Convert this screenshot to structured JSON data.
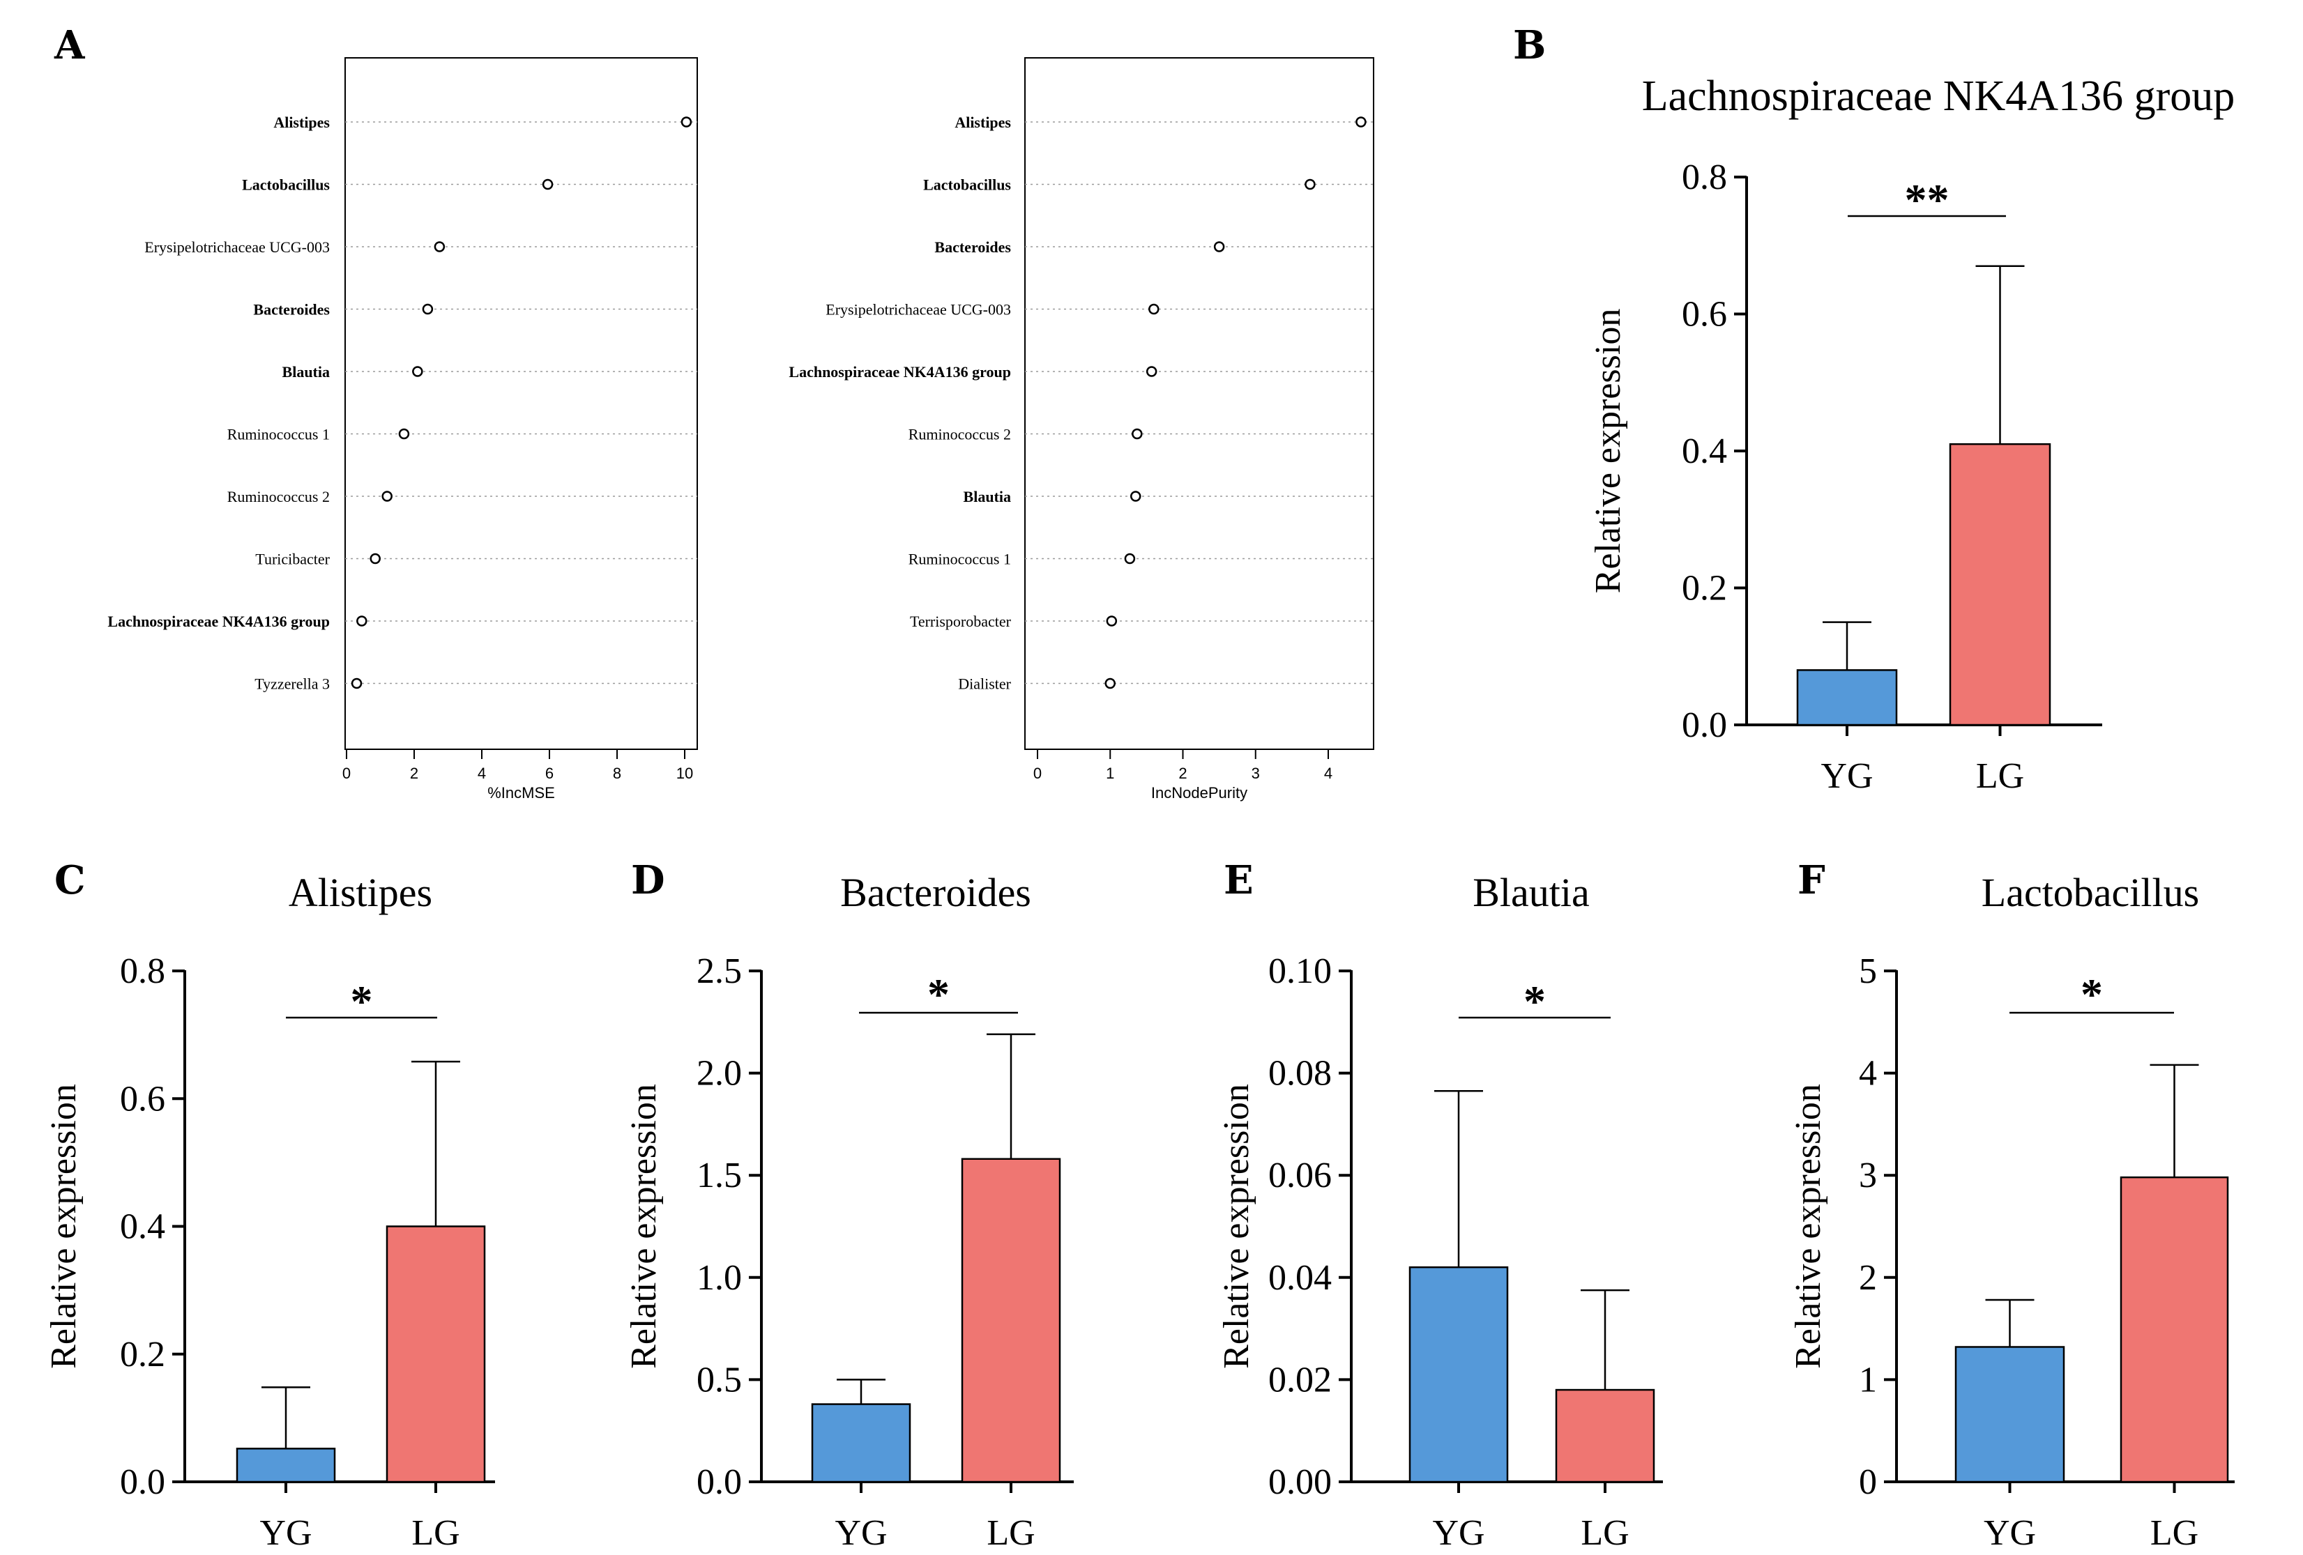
{
  "colors": {
    "highlight_label": "#e8000b",
    "normal_label": "#000000",
    "bar_YG": "#5599d9",
    "bar_LG": "#ef7672",
    "axis": "#000000",
    "dotted_guide": "#9a9a9a"
  },
  "panel_letters": [
    "A",
    "B",
    "C",
    "D",
    "E",
    "F"
  ],
  "chart_data": [
    {
      "id": "A1",
      "panel": "A",
      "type": "scatter",
      "title": "",
      "xlabel": "%IncMSE",
      "ylabel": "",
      "xlim": [
        0,
        10.5
      ],
      "xticks": [
        0,
        2,
        4,
        6,
        8,
        10
      ],
      "categories": [
        "Alistipes",
        "Lactobacillus",
        "Erysipelotrichaceae UCG-003",
        "Bacteroides",
        "Blautia",
        "Ruminococcus 1",
        "Ruminococcus 2",
        "Turicibacter",
        "Lachnospiraceae NK4A136 group",
        "Tyzzerella 3"
      ],
      "values": [
        10.05,
        5.95,
        2.75,
        2.4,
        2.1,
        1.7,
        1.2,
        0.85,
        0.45,
        0.3
      ],
      "highlighted": [
        true,
        true,
        false,
        true,
        true,
        false,
        false,
        false,
        true,
        false
      ]
    },
    {
      "id": "A2",
      "panel": "A",
      "type": "scatter",
      "title": "",
      "xlabel": "IncNodePurity",
      "ylabel": "",
      "xlim": [
        0,
        4.6
      ],
      "xticks": [
        0,
        1,
        2,
        3,
        4
      ],
      "categories": [
        "Alistipes",
        "Lactobacillus",
        "Bacteroides",
        "Erysipelotrichaceae UCG-003",
        "Lachnospiraceae NK4A136 group",
        "Ruminococcus 2",
        "Blautia",
        "Ruminococcus 1",
        "Terrisporobacter",
        "Dialister"
      ],
      "values": [
        4.45,
        3.75,
        2.5,
        1.6,
        1.57,
        1.37,
        1.35,
        1.27,
        1.02,
        1.0
      ],
      "highlighted": [
        true,
        true,
        true,
        false,
        true,
        false,
        true,
        false,
        false,
        false
      ]
    },
    {
      "id": "B",
      "panel": "B",
      "type": "bar",
      "title": "Lachnospiraceae NK4A136 group",
      "xlabel": "",
      "ylabel": "Relative expression",
      "categories": [
        "YG",
        "LG"
      ],
      "values": [
        0.08,
        0.41
      ],
      "errors": [
        0.07,
        0.26
      ],
      "ylim": [
        0,
        0.8
      ],
      "yticks": [
        "0.0",
        "0.2",
        "0.4",
        "0.6",
        "0.8"
      ],
      "significance": "**"
    },
    {
      "id": "C",
      "panel": "C",
      "type": "bar",
      "title": "Alistipes",
      "xlabel": "",
      "ylabel": "Relative expression",
      "categories": [
        "YG",
        "LG"
      ],
      "values": [
        0.052,
        0.4
      ],
      "errors": [
        0.096,
        0.258
      ],
      "ylim": [
        0,
        0.8
      ],
      "yticks": [
        "0.0",
        "0.2",
        "0.4",
        "0.6",
        "0.8"
      ],
      "significance": "*"
    },
    {
      "id": "D",
      "panel": "D",
      "type": "bar",
      "title": "Bacteroides",
      "xlabel": "",
      "ylabel": "Relative expression",
      "categories": [
        "YG",
        "LG"
      ],
      "values": [
        0.38,
        1.58
      ],
      "errors": [
        0.12,
        0.61
      ],
      "ylim": [
        0,
        2.5
      ],
      "yticks": [
        "0.0",
        "0.5",
        "1.0",
        "1.5",
        "2.0",
        "2.5"
      ],
      "significance": "*"
    },
    {
      "id": "E",
      "panel": "E",
      "type": "bar",
      "title": "Blautia",
      "xlabel": "",
      "ylabel": "Relative expression",
      "categories": [
        "YG",
        "LG"
      ],
      "values": [
        0.042,
        0.018
      ],
      "errors": [
        0.0345,
        0.0195
      ],
      "ylim": [
        0,
        0.1
      ],
      "yticks": [
        "0.00",
        "0.02",
        "0.04",
        "0.06",
        "0.08",
        "0.10"
      ],
      "significance": "*"
    },
    {
      "id": "F",
      "panel": "F",
      "type": "bar",
      "title": "Lactobacillus",
      "xlabel": "",
      "ylabel": "Relative expression",
      "categories": [
        "YG",
        "LG"
      ],
      "values": [
        1.32,
        2.98
      ],
      "errors": [
        0.46,
        1.1
      ],
      "ylim": [
        0,
        5
      ],
      "yticks": [
        "0",
        "1",
        "2",
        "3",
        "4",
        "5"
      ],
      "significance": "*"
    }
  ]
}
